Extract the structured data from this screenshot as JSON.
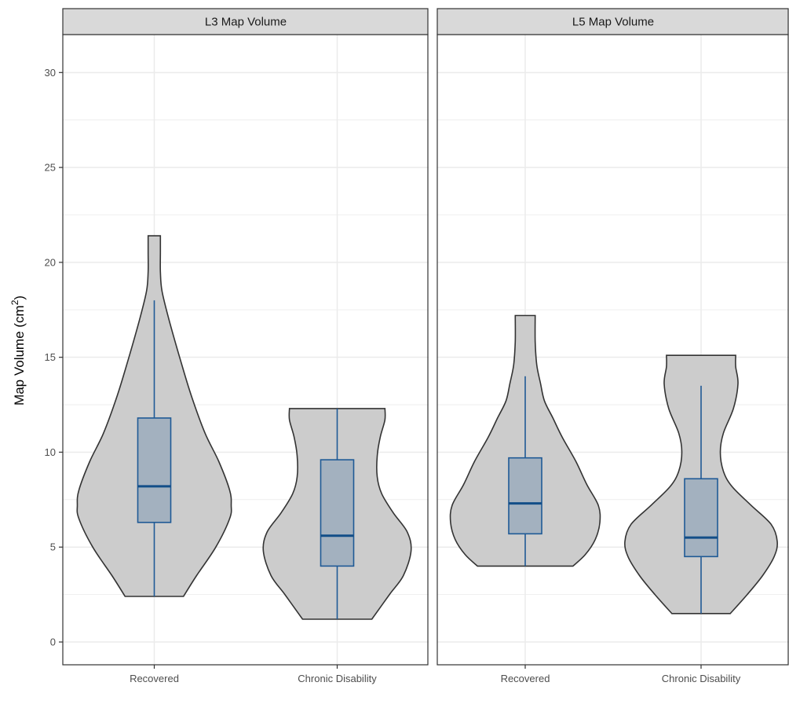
{
  "chart_data": {
    "type": "violin",
    "ylabel": "Map Volume (cm",
    "ylabel_sup": "2",
    "ylabel_suffix": ")",
    "ylim": [
      -1.2,
      32
    ],
    "yticks": [
      0,
      5,
      10,
      15,
      20,
      25,
      30
    ],
    "ytick_labels": [
      "0",
      "5",
      "10",
      "15",
      "20",
      "25",
      "30"
    ],
    "categories": [
      "Recovered",
      "Chronic Disability"
    ],
    "colors": {
      "violin_fill": "#cccccc",
      "violin_stroke": "#333333",
      "box_fill": "#a3b1bf",
      "box_stroke": "#1f5a96",
      "median": "#124e88",
      "strip_fill": "#d9d9d9",
      "grid": "#ebebeb",
      "panel_border": "#333333"
    },
    "panels": [
      {
        "title": "L3 Map Volume",
        "groups": [
          {
            "category": "Recovered",
            "min": 2.4,
            "q1": 6.3,
            "median": 8.2,
            "q3": 11.8,
            "whisker_high": 18.0,
            "max": 21.4,
            "density": [
              [
                2.4,
                0.38
              ],
              [
                3.5,
                0.55
              ],
              [
                5.0,
                0.8
              ],
              [
                6.5,
                0.98
              ],
              [
                7.2,
                1.0
              ],
              [
                8.0,
                0.98
              ],
              [
                9.5,
                0.84
              ],
              [
                11.0,
                0.66
              ],
              [
                13.0,
                0.48
              ],
              [
                15.0,
                0.33
              ],
              [
                17.0,
                0.19
              ],
              [
                18.5,
                0.1
              ],
              [
                19.5,
                0.08
              ],
              [
                20.5,
                0.08
              ],
              [
                21.4,
                0.08
              ]
            ]
          },
          {
            "category": "Chronic Disability",
            "min": 1.2,
            "q1": 4.0,
            "median": 5.6,
            "q3": 9.6,
            "whisker_high": 12.3,
            "max": 12.3,
            "density": [
              [
                1.2,
                0.45
              ],
              [
                2.5,
                0.68
              ],
              [
                3.5,
                0.86
              ],
              [
                4.8,
                0.96
              ],
              [
                5.8,
                0.91
              ],
              [
                6.8,
                0.73
              ],
              [
                7.8,
                0.58
              ],
              [
                8.7,
                0.52
              ],
              [
                9.8,
                0.52
              ],
              [
                10.8,
                0.56
              ],
              [
                11.7,
                0.62
              ],
              [
                12.3,
                0.62
              ]
            ]
          }
        ]
      },
      {
        "title": "L5 Map Volume",
        "groups": [
          {
            "category": "Recovered",
            "min": 4.0,
            "q1": 5.7,
            "median": 7.3,
            "q3": 9.7,
            "whisker_high": 14.0,
            "max": 17.2,
            "density": [
              [
                4.0,
                0.62
              ],
              [
                4.6,
                0.78
              ],
              [
                5.4,
                0.91
              ],
              [
                6.3,
                0.97
              ],
              [
                7.2,
                0.95
              ],
              [
                8.3,
                0.8
              ],
              [
                9.5,
                0.66
              ],
              [
                10.8,
                0.48
              ],
              [
                11.8,
                0.36
              ],
              [
                12.7,
                0.25
              ],
              [
                13.6,
                0.2
              ],
              [
                14.6,
                0.15
              ],
              [
                15.8,
                0.13
              ],
              [
                17.2,
                0.13
              ]
            ]
          },
          {
            "category": "Chronic Disability",
            "min": 1.5,
            "q1": 4.5,
            "median": 5.5,
            "q3": 8.6,
            "whisker_high": 13.5,
            "max": 15.1,
            "density": [
              [
                1.5,
                0.38
              ],
              [
                2.5,
                0.6
              ],
              [
                3.5,
                0.8
              ],
              [
                4.5,
                0.95
              ],
              [
                5.3,
                0.99
              ],
              [
                6.2,
                0.91
              ],
              [
                7.2,
                0.65
              ],
              [
                8.2,
                0.4
              ],
              [
                9.0,
                0.29
              ],
              [
                10.0,
                0.25
              ],
              [
                11.0,
                0.29
              ],
              [
                12.3,
                0.42
              ],
              [
                13.6,
                0.48
              ],
              [
                14.5,
                0.45
              ],
              [
                15.1,
                0.45
              ]
            ]
          }
        ]
      }
    ]
  }
}
